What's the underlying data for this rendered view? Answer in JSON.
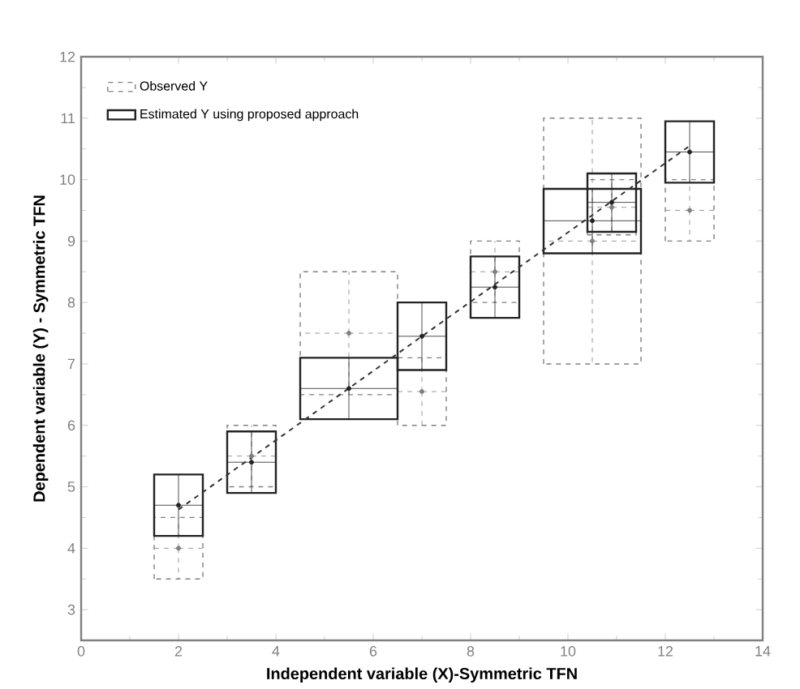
{
  "chart_data": {
    "type": "scatter",
    "xlabel": "Independent variable (X)-Symmetric TFN",
    "ylabel": "Dependent variable (Y) - Symmetric TFN",
    "xlim": [
      0,
      14
    ],
    "xticks": [
      0,
      2,
      4,
      6,
      8,
      10,
      12,
      14
    ],
    "ylim": [
      2.5,
      12
    ],
    "yticks": [
      3,
      4,
      5,
      6,
      7,
      8,
      9,
      10,
      11,
      12
    ],
    "legend": "top left",
    "grid": false,
    "series": [
      {
        "name": "Observed Y",
        "color": "#808080",
        "line_style": "dashed",
        "x": [
          2,
          3.5,
          5.5,
          7,
          8.5,
          10.5,
          10.9,
          12.5
        ],
        "values": [
          4,
          5.5,
          7.5,
          6.55,
          8.5,
          9,
          9.55,
          9.5
        ],
        "xerrors": [
          [
            1.5,
            2.5
          ],
          [
            3,
            4
          ],
          [
            4.5,
            6.5
          ],
          [
            6.5,
            7.5
          ],
          [
            8,
            9
          ],
          [
            9.5,
            11.5
          ],
          [
            10.4,
            11.4
          ],
          [
            12,
            13
          ]
        ],
        "errors": [
          [
            3.5,
            4.5
          ],
          [
            5,
            6
          ],
          [
            6.5,
            8.5
          ],
          [
            6,
            7.1
          ],
          [
            8,
            9
          ],
          [
            7,
            11
          ],
          [
            9.1,
            10
          ],
          [
            9,
            10
          ]
        ]
      },
      {
        "name": "Estimated Y using proposed approach",
        "color": "#222222",
        "line_style": "solid",
        "x": [
          2,
          3.5,
          5.5,
          7,
          8.5,
          10.5,
          10.9,
          12.5
        ],
        "values": [
          4.7,
          5.4,
          6.6,
          7.45,
          8.25,
          9.33,
          9.63,
          10.45
        ],
        "xerrors": [
          [
            1.5,
            2.5
          ],
          [
            3,
            4
          ],
          [
            4.5,
            6.5
          ],
          [
            6.5,
            7.5
          ],
          [
            8,
            9
          ],
          [
            9.5,
            11.5
          ],
          [
            10.4,
            11.4
          ],
          [
            12,
            13
          ]
        ],
        "errors": [
          [
            4.2,
            5.2
          ],
          [
            4.9,
            5.9
          ],
          [
            6.1,
            7.1
          ],
          [
            6.9,
            8
          ],
          [
            7.75,
            8.75
          ],
          [
            8.8,
            9.85
          ],
          [
            9.15,
            10.1
          ],
          [
            9.95,
            10.95
          ]
        ]
      },
      {
        "type": "line",
        "color": "#333333",
        "line_style": "dashed",
        "x": [
          2,
          12.5
        ],
        "values": [
          4.63,
          10.55
        ]
      }
    ]
  }
}
